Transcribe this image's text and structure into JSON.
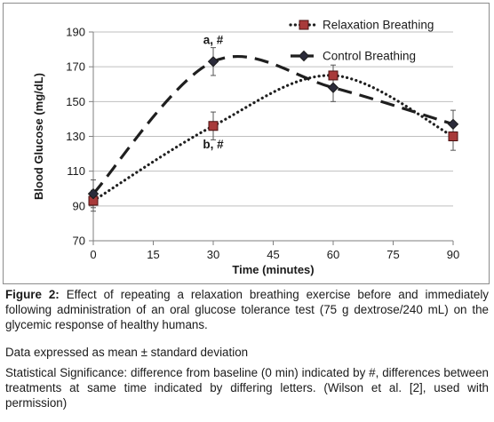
{
  "chart_data": {
    "type": "line",
    "xlabel": "Time (minutes)",
    "ylabel": "Blood Glucose  (mg/dL)",
    "xlim": [
      0,
      90
    ],
    "ylim": [
      70,
      190
    ],
    "x_ticks": [
      "0",
      "15",
      "30",
      "45",
      "60",
      "75",
      "90"
    ],
    "y_ticks": [
      "70",
      "90",
      "110",
      "130",
      "150",
      "170",
      "190"
    ],
    "x_tick_values": [
      0,
      15,
      30,
      45,
      60,
      75,
      90
    ],
    "y_tick_values": [
      70,
      90,
      110,
      130,
      150,
      170,
      190
    ],
    "grid": "horizontal",
    "legend_position": "top-right",
    "series": [
      {
        "name": "Relaxation Breathing",
        "style": "dotted",
        "marker": "square",
        "color": "#1f1f1f",
        "marker_color": "#a83a3a",
        "x": [
          0,
          30,
          60,
          90
        ],
        "y": [
          93,
          136,
          165,
          130
        ],
        "error": [
          6,
          8,
          6,
          8
        ]
      },
      {
        "name": "Control Breathing",
        "style": "dashed",
        "marker": "diamond",
        "color": "#1f1f1f",
        "marker_color": "#2b2b3a",
        "x": [
          0,
          30,
          60,
          90
        ],
        "y": [
          97,
          173,
          158,
          137
        ],
        "error": [
          8,
          8,
          8,
          8
        ]
      }
    ],
    "annotations": [
      {
        "text": "a, #",
        "x": 30,
        "y": 183
      },
      {
        "text": "b, #",
        "x": 30,
        "y": 123
      }
    ]
  },
  "caption": {
    "fig_label": "Figure 2:",
    "main": " Effect of repeating a relaxation breathing exercise before and immediately following administration of an oral glucose tolerance test (75 g dextrose/240 mL) on the glycemic response of healthy humans.",
    "data_note": "Data expressed as mean ± standard deviation",
    "significance": "Statistical Significance: difference from baseline (0 min) indicated by #, differences between treatments at same time indicated by differing letters. (Wilson et al. [2], used with permission)"
  }
}
